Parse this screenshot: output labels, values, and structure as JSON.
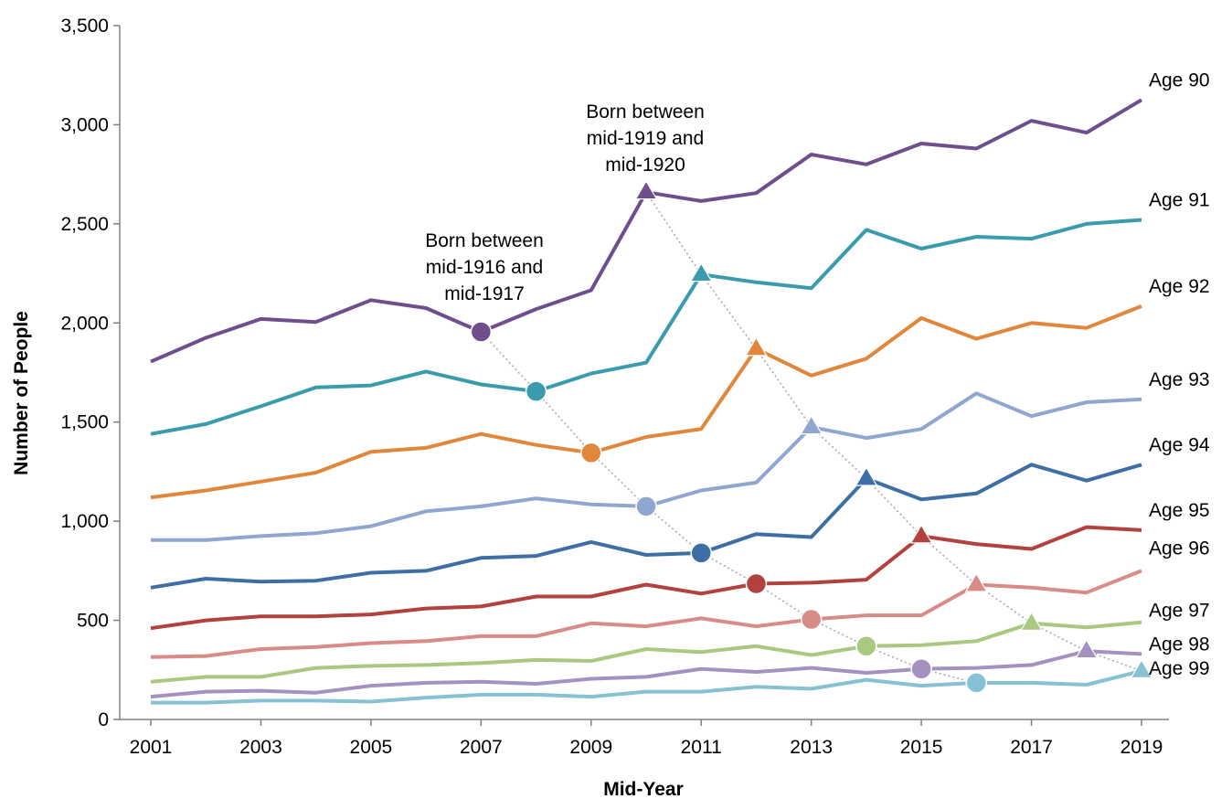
{
  "chart_data": {
    "type": "line",
    "title": "",
    "xlabel": "Mid-Year",
    "ylabel": "Number of People",
    "x": [
      2001,
      2002,
      2003,
      2004,
      2005,
      2006,
      2007,
      2008,
      2009,
      2010,
      2011,
      2012,
      2013,
      2014,
      2015,
      2016,
      2017,
      2018,
      2019
    ],
    "x_tick_labels": [
      "2001",
      "2003",
      "2005",
      "2007",
      "2009",
      "2011",
      "2013",
      "2015",
      "2017",
      "2019"
    ],
    "xlim": [
      2001,
      2019
    ],
    "ylim": [
      0,
      3500
    ],
    "y_ticks": [
      0,
      500,
      1000,
      1500,
      2000,
      2500,
      3000,
      3500
    ],
    "y_tick_labels": [
      "0",
      "500",
      "1,000",
      "1,500",
      "2,000",
      "2,500",
      "3,000",
      "3,500"
    ],
    "grid": false,
    "legend": "none",
    "series": [
      {
        "name": "Age 90",
        "color": "#6f4e8e",
        "values": [
          1805,
          1925,
          2020,
          2005,
          2115,
          2075,
          1955,
          2070,
          2165,
          2660,
          2615,
          2655,
          2850,
          2800,
          2905,
          2880,
          3020,
          2960,
          3125
        ]
      },
      {
        "name": "Age 91",
        "color": "#3a9bae",
        "values": [
          1440,
          1490,
          1580,
          1675,
          1685,
          1755,
          1690,
          1655,
          1745,
          1800,
          2245,
          2205,
          2175,
          2470,
          2375,
          2435,
          2425,
          2500,
          2520
        ]
      },
      {
        "name": "Age 92",
        "color": "#e0873b",
        "values": [
          1120,
          1155,
          1200,
          1245,
          1350,
          1370,
          1440,
          1385,
          1345,
          1425,
          1465,
          1870,
          1735,
          1820,
          2025,
          1920,
          2000,
          1975,
          2085
        ]
      },
      {
        "name": "Age 93",
        "color": "#8fa6cf",
        "values": [
          905,
          905,
          925,
          940,
          975,
          1050,
          1075,
          1115,
          1085,
          1075,
          1155,
          1195,
          1475,
          1420,
          1465,
          1645,
          1530,
          1600,
          1615
        ]
      },
      {
        "name": "Age 94",
        "color": "#3e6ea6",
        "values": [
          665,
          710,
          695,
          700,
          740,
          750,
          815,
          825,
          895,
          830,
          840,
          935,
          920,
          1215,
          1110,
          1140,
          1285,
          1205,
          1285
        ]
      },
      {
        "name": "Age 95",
        "color": "#b3413e",
        "values": [
          460,
          500,
          520,
          520,
          530,
          560,
          570,
          620,
          620,
          680,
          635,
          685,
          690,
          705,
          925,
          885,
          860,
          970,
          955
        ]
      },
      {
        "name": "Age 96",
        "color": "#d98b88",
        "values": [
          315,
          320,
          355,
          365,
          385,
          395,
          420,
          420,
          485,
          470,
          510,
          470,
          505,
          525,
          525,
          680,
          665,
          640,
          750
        ]
      },
      {
        "name": "Age 97",
        "color": "#a8c97f",
        "values": [
          190,
          215,
          215,
          260,
          270,
          275,
          285,
          300,
          295,
          355,
          340,
          370,
          325,
          370,
          375,
          395,
          485,
          465,
          490
        ]
      },
      {
        "name": "Age 98",
        "color": "#a491bf",
        "values": [
          115,
          140,
          145,
          135,
          170,
          185,
          190,
          180,
          205,
          215,
          255,
          240,
          260,
          235,
          255,
          260,
          275,
          345,
          330
        ]
      },
      {
        "name": "Age 99",
        "color": "#86c1d4",
        "values": [
          85,
          85,
          95,
          95,
          90,
          110,
          125,
          125,
          115,
          140,
          140,
          165,
          155,
          200,
          170,
          185,
          185,
          175,
          245
        ]
      }
    ],
    "cohort_lines": [
      {
        "marker": "circle",
        "points": [
          [
            2007,
            1955
          ],
          [
            2008,
            1655
          ],
          [
            2009,
            1345
          ],
          [
            2010,
            1075
          ],
          [
            2011,
            840
          ],
          [
            2012,
            685
          ],
          [
            2013,
            505
          ],
          [
            2014,
            370
          ],
          [
            2015,
            255
          ],
          [
            2016,
            185
          ]
        ]
      },
      {
        "marker": "triangle",
        "points": [
          [
            2010,
            2660
          ],
          [
            2011,
            2245
          ],
          [
            2012,
            1870
          ],
          [
            2013,
            1475
          ],
          [
            2014,
            1215
          ],
          [
            2015,
            925
          ],
          [
            2016,
            680
          ],
          [
            2017,
            485
          ],
          [
            2018,
            345
          ],
          [
            2019,
            245
          ]
        ]
      }
    ],
    "annotations": [
      {
        "lines": [
          "Born between",
          "mid-1916 and",
          "mid-1917"
        ],
        "x": 2007
      },
      {
        "lines": [
          "Born between",
          "mid-1919 and",
          "mid-1920"
        ],
        "x": 2010
      }
    ]
  }
}
